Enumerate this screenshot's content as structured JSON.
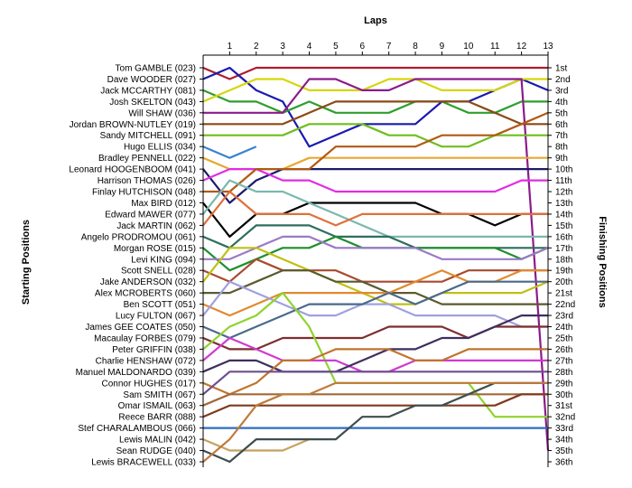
{
  "chart_data": {
    "type": "line",
    "title": "",
    "xlabel": "Laps",
    "ylabel_left": "Starting Positions",
    "ylabel_right": "Finishing Positions",
    "x_ticks": [
      1,
      2,
      3,
      4,
      5,
      6,
      7,
      8,
      9,
      10,
      11,
      12,
      13
    ],
    "y_range": [
      1,
      36
    ],
    "y_inverted": true,
    "grid": false,
    "starting_grid": [
      "Tom GAMBLE (023)",
      "Dave WOODER (027)",
      "Jack MCCARTHY (081)",
      "Josh SKELTON (043)",
      "Will SHAW (036)",
      "Jordan BROWN-NUTLEY (019)",
      "Sandy MITCHELL (091)",
      "Hugo ELLIS (034)",
      "Bradley PENNELL (022)",
      "Leonard HOOGENBOOM (041)",
      "Harrison THOMAS (026)",
      "Finlay HUTCHISON (048)",
      "Max BIRD (012)",
      "Edward MAWER (077)",
      "Jack MARTIN (062)",
      "Angelo PRODROMOU (061)",
      "Morgan ROSE (015)",
      "Levi KING (094)",
      "Scott SNELL (028)",
      "Jake ANDERSON (032)",
      "Alex MCROBERTS (060)",
      "Ben SCOTT (051)",
      "Lucy FULTON (067)",
      "James GEE COATES (050)",
      "Macaulay FORBES (079)",
      "Peter GRIFFIN (038)",
      "Charlie HENSHAW (072)",
      "Manuel MALDONARDO (039)",
      "Connor HUGHES (017)",
      "Sam SMITH (067)",
      "Omar ISMAIL (063)",
      "Reece BARR (088)",
      "Stef CHARALAMBOUS (066)",
      "Lewis MALIN (042)",
      "Sean RUDGE (040)",
      "Lewis BRACEWELL (033)"
    ],
    "finishing_labels": [
      "1st",
      "2nd",
      "3rd",
      "4th",
      "5th",
      "6th",
      "7th",
      "8th",
      "9th",
      "10th",
      "11th",
      "12th",
      "13th",
      "14th",
      "15th",
      "16th",
      "17th",
      "18th",
      "19th",
      "20th",
      "21st",
      "22nd",
      "23rd",
      "24th",
      "25th",
      "26th",
      "27th",
      "28th",
      "29th",
      "30th",
      "31st",
      "32nd",
      "33rd",
      "34th",
      "35th",
      "36th"
    ],
    "series": [
      {
        "color": "#b01c2e",
        "positions": [
          1,
          2,
          1,
          1,
          1,
          1,
          1,
          1,
          1,
          1,
          1,
          1,
          1,
          1
        ]
      },
      {
        "color": "#1a1ab0",
        "positions": [
          2,
          1,
          3,
          4,
          8,
          7,
          6,
          6,
          6,
          4,
          4,
          3,
          2,
          3
        ]
      },
      {
        "color": "#2e9e2e",
        "positions": [
          3,
          4,
          4,
          5,
          4,
          5,
          5,
          5,
          4,
          4,
          5,
          5,
          4,
          4
        ]
      },
      {
        "color": "#d6d60a",
        "positions": [
          4,
          3,
          2,
          2,
          3,
          3,
          3,
          2,
          2,
          3,
          3,
          3,
          2,
          2
        ]
      },
      {
        "color": "#8b1b8b",
        "positions": [
          5,
          5,
          5,
          5,
          2,
          2,
          3,
          3,
          2,
          2,
          2,
          2,
          2,
          35
        ]
      },
      {
        "color": "#8b4a14",
        "positions": [
          6,
          6,
          6,
          6,
          5,
          4,
          4,
          4,
          4,
          4,
          4,
          5,
          6,
          6
        ]
      },
      {
        "color": "#6fbe1e",
        "positions": [
          7,
          7,
          7,
          7,
          6,
          6,
          6,
          7,
          7,
          8,
          8,
          7,
          7,
          7
        ]
      },
      {
        "color": "#3a82d0",
        "positions": [
          8,
          9,
          8
        ]
      },
      {
        "color": "#e6a832",
        "positions": [
          9,
          10,
          10,
          10,
          9,
          9,
          9,
          9,
          9,
          9,
          9,
          9,
          9,
          9
        ]
      },
      {
        "color": "#1a1a6e",
        "positions": [
          10,
          13,
          11,
          10,
          10,
          10,
          10,
          10,
          10,
          10,
          10,
          10,
          10,
          10
        ]
      },
      {
        "color": "#e22ce2",
        "positions": [
          11,
          10,
          10,
          11,
          11,
          12,
          12,
          12,
          12,
          12,
          12,
          12,
          11,
          11
        ]
      },
      {
        "color": "#b05a14",
        "positions": [
          12,
          12,
          10,
          10,
          10,
          8,
          8,
          8,
          8,
          7,
          7,
          7,
          6,
          5
        ]
      },
      {
        "color": "#000000",
        "positions": [
          13,
          16,
          14,
          14,
          13,
          13,
          13,
          13,
          13,
          14,
          14,
          15,
          14,
          14
        ]
      },
      {
        "color": "#7ab8ae",
        "positions": [
          14,
          11,
          12,
          12,
          13,
          14,
          15,
          16,
          16,
          16,
          16,
          16,
          16,
          16
        ]
      },
      {
        "color": "#e0703a",
        "positions": [
          15,
          12,
          14,
          14,
          14,
          15,
          14,
          14,
          14,
          14,
          14,
          14,
          14,
          14
        ]
      },
      {
        "color": "#2e6e5e",
        "positions": [
          16,
          17,
          15,
          15,
          15,
          16,
          16,
          16,
          17,
          17,
          17,
          17,
          17,
          17
        ]
      },
      {
        "color": "#1e8e2e",
        "positions": [
          17,
          19,
          18,
          17,
          17,
          16,
          17,
          17,
          17,
          17,
          17,
          17,
          18,
          17
        ]
      },
      {
        "color": "#9a7ac6",
        "positions": [
          18,
          18,
          17,
          16,
          16,
          17,
          17,
          17,
          17,
          18,
          18,
          18,
          18,
          17
        ]
      },
      {
        "color": "#a84a2e",
        "positions": [
          19,
          20,
          18,
          19,
          19,
          19,
          20,
          20,
          20,
          20,
          19,
          19,
          19,
          19
        ]
      },
      {
        "color": "#c0c014",
        "positions": [
          20,
          17,
          17,
          18,
          19,
          20,
          21,
          22,
          22,
          21,
          21,
          21,
          21,
          20
        ]
      },
      {
        "color": "#5a5a2e",
        "positions": [
          21,
          21,
          20,
          19,
          19,
          20,
          20,
          21,
          21,
          22,
          22,
          22,
          22,
          22
        ]
      },
      {
        "color": "#e08a2e",
        "positions": [
          22,
          23,
          22,
          21,
          21,
          21,
          21,
          21,
          20,
          19,
          20,
          20,
          19,
          19
        ]
      },
      {
        "color": "#a0a0e0",
        "positions": [
          23,
          20,
          21,
          22,
          23,
          23,
          22,
          22,
          23,
          23,
          23,
          23,
          24,
          24
        ]
      },
      {
        "color": "#4a6a8a",
        "positions": [
          24,
          25,
          24,
          23,
          22,
          22,
          22,
          21,
          22,
          21,
          20,
          20,
          20,
          20
        ]
      },
      {
        "color": "#7e2e2e",
        "positions": [
          25,
          26,
          26,
          25,
          25,
          25,
          25,
          24,
          24,
          24,
          25,
          24,
          24,
          24
        ]
      },
      {
        "color": "#8ed42e",
        "positions": [
          26,
          24,
          23,
          21,
          24,
          29,
          29,
          29,
          29,
          29,
          29,
          32,
          32,
          32
        ]
      },
      {
        "color": "#d03ad0",
        "positions": [
          27,
          25,
          26,
          27,
          27,
          27,
          28,
          28,
          27,
          27,
          27,
          27,
          27,
          27
        ]
      },
      {
        "color": "#3e2e5e",
        "positions": [
          28,
          27,
          27,
          28,
          28,
          28,
          27,
          26,
          26,
          25,
          25,
          24,
          23,
          23
        ]
      },
      {
        "color": "#c0742e",
        "positions": [
          29,
          30,
          29,
          27,
          27,
          26,
          26,
          26,
          27,
          27,
          26,
          26,
          26,
          26
        ]
      },
      {
        "color": "#6e4e8e",
        "positions": [
          30,
          28,
          28,
          28,
          28,
          28,
          28,
          28,
          28,
          28,
          28,
          28,
          28,
          28
        ]
      },
      {
        "color": "#a06a3a",
        "positions": [
          31,
          30,
          30,
          30,
          30,
          30,
          30,
          30,
          30,
          30,
          30,
          30,
          30,
          30
        ]
      },
      {
        "color": "#7e3a1e",
        "positions": [
          32,
          31,
          31,
          31,
          31,
          31,
          31,
          31,
          31,
          31,
          31,
          31,
          30,
          30
        ]
      },
      {
        "color": "#2e6ec0",
        "positions": [
          33,
          33,
          33,
          33,
          33,
          33,
          33,
          33,
          33,
          33,
          33,
          33,
          33,
          33
        ]
      },
      {
        "color": "#c8a060",
        "positions": [
          34,
          35,
          35,
          35,
          34
        ]
      },
      {
        "color": "#3e4e4e",
        "positions": [
          35,
          36,
          34,
          34,
          34,
          34,
          32,
          32,
          31,
          31,
          30,
          29,
          29,
          29
        ]
      },
      {
        "color": "#c07a3a",
        "positions": [
          36,
          34,
          31,
          30,
          30,
          29,
          29,
          29,
          29,
          29,
          29,
          29,
          29,
          29
        ]
      }
    ]
  }
}
